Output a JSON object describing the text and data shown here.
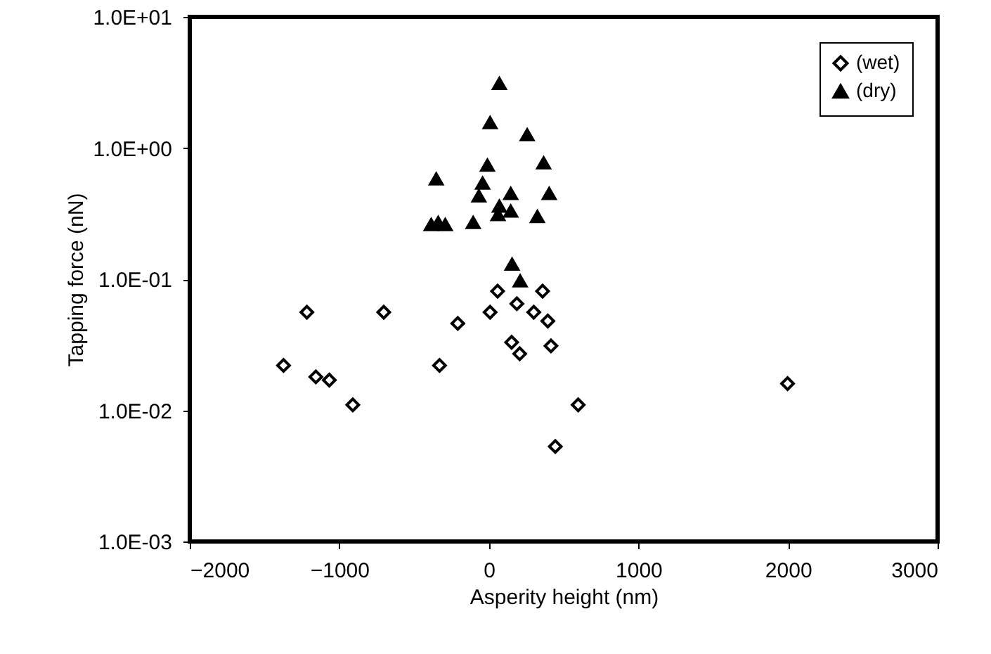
{
  "chart_data": {
    "type": "scatter",
    "xlabel": "Asperity height (nm)",
    "ylabel": "Tapping force (nN)",
    "log": "y",
    "grid": false,
    "legend": "top right",
    "xlim": [
      -2000,
      3000
    ],
    "xticks": [
      -2000,
      -1000,
      0,
      1000,
      2000,
      3000
    ],
    "ylim": [
      0.001,
      10
    ],
    "yticks": [
      {
        "value": 0.001,
        "label": "1.0E-03"
      },
      {
        "value": 0.01,
        "label": "1.0E-02"
      },
      {
        "value": 0.1,
        "label": "1.0E-01"
      },
      {
        "value": 1,
        "label": "1.0E+00"
      },
      {
        "value": 10,
        "label": "1.0E+01"
      }
    ],
    "series": [
      {
        "name": "(wet)",
        "color": "#000000",
        "marker": "diamond",
        "x": [
          -1373,
          -1217,
          -1157,
          -1067,
          -910,
          -703,
          -330,
          -208,
          8,
          58,
          187,
          152,
          206,
          300,
          359,
          394,
          415,
          597,
          444,
          1997
        ],
        "values": [
          0.022,
          0.056,
          0.018,
          0.017,
          0.011,
          0.056,
          0.022,
          0.046,
          0.056,
          0.081,
          0.065,
          0.033,
          0.027,
          0.056,
          0.081,
          0.048,
          0.031,
          0.011,
          0.0053,
          0.016
        ]
      },
      {
        "name": "(dry)",
        "color": "#000000",
        "marker": "triangle",
        "x": [
          70,
          8,
          256,
          366,
          -10,
          -352,
          -42,
          -67,
          403,
          146,
          70,
          146,
          61,
          324,
          -105,
          -386,
          -292,
          -339,
          155,
          209
        ],
        "values": [
          3.1,
          1.56,
          1.26,
          0.77,
          0.74,
          0.58,
          0.54,
          0.43,
          0.45,
          0.45,
          0.36,
          0.33,
          0.31,
          0.3,
          0.27,
          0.26,
          0.26,
          0.27,
          0.13,
          0.097
        ]
      }
    ]
  }
}
